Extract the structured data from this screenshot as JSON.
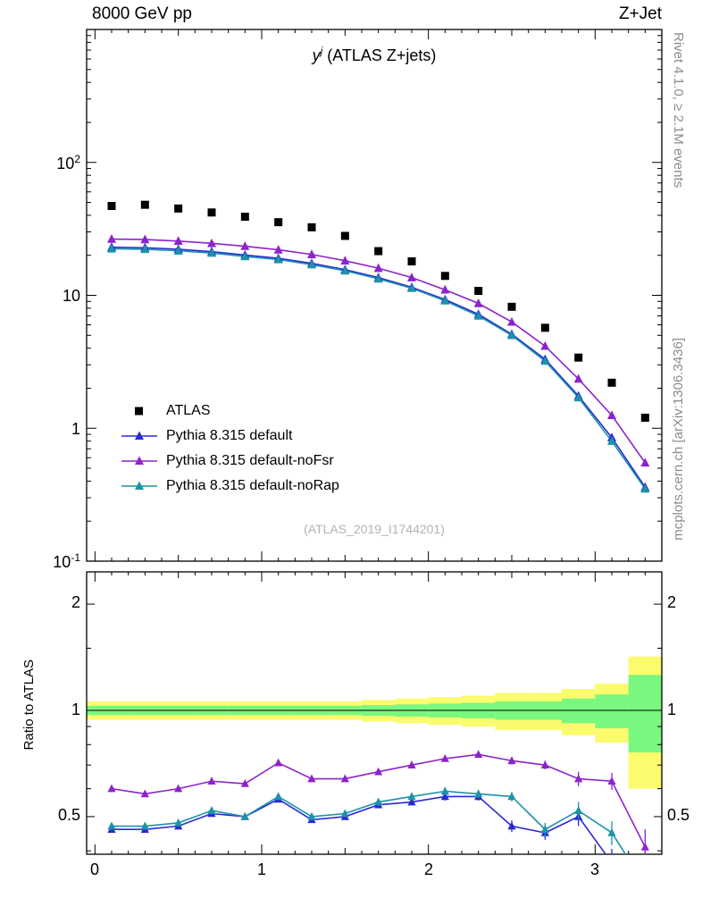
{
  "header": {
    "left": "8000 GeV pp",
    "right": "Z+Jet"
  },
  "side_notes": {
    "rivet": "Rivet 4.1.0, ≥ 2.1M events",
    "mcplots": "mcplots.cern.ch [arXiv:1306.3436]"
  },
  "watermark": "(ATLAS_2019_I1744201)",
  "chart_data": [
    {
      "type": "line",
      "title_parts": {
        "base": "y",
        "sup": "j",
        "rest": " (ATLAS Z+jets)"
      },
      "xlim": [
        -0.05,
        3.4
      ],
      "ylim": [
        0.1,
        1000
      ],
      "yscale": "log",
      "x_label_ticks": [
        0,
        1,
        2,
        3
      ],
      "y_ticks": [
        {
          "m": "10",
          "e": "2",
          "v": 100
        },
        {
          "m": "10",
          "e": "",
          "v": 10
        },
        {
          "m": "1",
          "e": "",
          "v": 1
        },
        {
          "m": "10",
          "e": "-1",
          "v": 0.1
        }
      ],
      "x": [
        0.1,
        0.3,
        0.5,
        0.7,
        0.9,
        1.1,
        1.3,
        1.5,
        1.7,
        1.9,
        2.1,
        2.3,
        2.5,
        2.7,
        2.9,
        3.1,
        3.3
      ],
      "series": [
        {
          "name": "ATLAS",
          "marker": "square",
          "color": "#000000",
          "values": [
            47,
            48,
            45,
            42,
            39,
            35.5,
            32.5,
            28,
            21.5,
            18,
            14,
            10.8,
            8.2,
            5.7,
            3.4,
            2.2,
            1.2
          ]
        },
        {
          "name": "Pythia 8.315 default",
          "marker": "triangle",
          "color": "#2a2ad4",
          "values": [
            23,
            22.8,
            22.2,
            21.3,
            20.1,
            19.0,
            17.4,
            15.6,
            13.6,
            11.5,
            9.3,
            7.2,
            5.1,
            3.3,
            1.75,
            0.85,
            0.36
          ]
        },
        {
          "name": "Pythia 8.315 default-noFsr",
          "marker": "triangle",
          "color": "#8d23cc",
          "values": [
            26.5,
            26.3,
            25.6,
            24.6,
            23.4,
            22.0,
            20.3,
            18.2,
            16.0,
            13.6,
            11.0,
            8.7,
            6.3,
            4.15,
            2.35,
            1.25,
            0.55
          ]
        },
        {
          "name": "Pythia 8.315 default-noRap",
          "marker": "triangle",
          "color": "#1b93a8",
          "values": [
            22.4,
            22.2,
            21.6,
            20.8,
            19.6,
            18.6,
            17.0,
            15.3,
            13.3,
            11.3,
            9.1,
            7.0,
            5.0,
            3.2,
            1.7,
            0.8,
            0.35
          ]
        }
      ]
    },
    {
      "type": "ratio",
      "ylabel": "Ratio to ATLAS",
      "ylim": [
        0.39,
        2.5
      ],
      "yscale": "log",
      "ytick_labels": [
        "2",
        "1",
        "0.5"
      ],
      "ytick_values": [
        2,
        1,
        0.5
      ],
      "bin_edges": [
        0,
        0.2,
        0.4,
        0.6,
        0.8,
        1.0,
        1.2,
        1.4,
        1.6,
        1.8,
        2.0,
        2.2,
        2.4,
        2.6,
        2.8,
        3.0,
        3.2,
        3.4
      ],
      "bands": {
        "yellow": {
          "color": "#fbfb6e",
          "hi": [
            1.06,
            1.06,
            1.06,
            1.06,
            1.06,
            1.06,
            1.06,
            1.06,
            1.07,
            1.08,
            1.09,
            1.1,
            1.12,
            1.12,
            1.15,
            1.19,
            1.42
          ],
          "lo": [
            0.94,
            0.94,
            0.94,
            0.94,
            0.94,
            0.94,
            0.94,
            0.94,
            0.93,
            0.92,
            0.91,
            0.9,
            0.88,
            0.88,
            0.85,
            0.81,
            0.6
          ]
        },
        "green": {
          "color": "#79f77f",
          "hi": [
            1.03,
            1.03,
            1.03,
            1.03,
            1.03,
            1.03,
            1.03,
            1.03,
            1.035,
            1.04,
            1.045,
            1.05,
            1.06,
            1.06,
            1.08,
            1.11,
            1.26
          ],
          "lo": [
            0.97,
            0.97,
            0.97,
            0.97,
            0.97,
            0.97,
            0.97,
            0.97,
            0.965,
            0.96,
            0.955,
            0.95,
            0.94,
            0.94,
            0.92,
            0.89,
            0.76
          ]
        }
      },
      "series": [
        {
          "name": "Pythia 8.315 default",
          "color": "#2a2ad4",
          "values": [
            0.46,
            0.46,
            0.47,
            0.51,
            0.5,
            0.56,
            0.49,
            0.5,
            0.54,
            0.55,
            0.57,
            0.57,
            0.47,
            0.45,
            0.5,
            0.37,
            0.28
          ],
          "errors": [
            0.01,
            0.01,
            0.01,
            0.01,
            0.01,
            0.01,
            0.01,
            0.01,
            0.012,
            0.012,
            0.015,
            0.015,
            0.018,
            0.02,
            0.03,
            0.035,
            0.05
          ]
        },
        {
          "name": "Pythia 8.315 default-noFsr",
          "color": "#8d23cc",
          "values": [
            0.6,
            0.58,
            0.6,
            0.63,
            0.62,
            0.71,
            0.64,
            0.64,
            0.67,
            0.7,
            0.73,
            0.75,
            0.72,
            0.7,
            0.64,
            0.63,
            0.41
          ],
          "errors": [
            0.01,
            0.01,
            0.01,
            0.01,
            0.01,
            0.01,
            0.01,
            0.01,
            0.012,
            0.012,
            0.015,
            0.015,
            0.018,
            0.02,
            0.03,
            0.035,
            0.05
          ]
        },
        {
          "name": "Pythia 8.315 default-noRap",
          "color": "#1b93a8",
          "values": [
            0.47,
            0.47,
            0.48,
            0.52,
            0.5,
            0.57,
            0.5,
            0.51,
            0.55,
            0.57,
            0.59,
            0.58,
            0.57,
            0.46,
            0.52,
            0.45,
            0.32
          ],
          "errors": [
            0.01,
            0.01,
            0.01,
            0.01,
            0.01,
            0.01,
            0.01,
            0.01,
            0.012,
            0.012,
            0.015,
            0.015,
            0.018,
            0.02,
            0.03,
            0.035,
            0.05
          ]
        }
      ]
    }
  ]
}
